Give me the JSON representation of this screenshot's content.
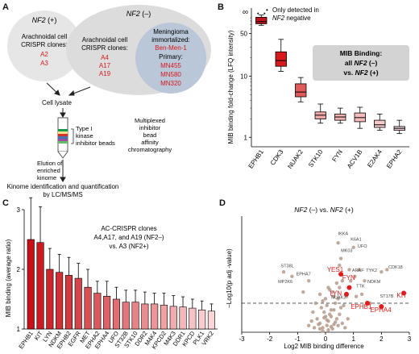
{
  "panelA": {
    "label": "A",
    "nf2pos_title_pre": "NF2",
    "nf2pos_title_post": " (+)",
    "nf2neg_title_pre": "NF2",
    "nf2neg_title_post": " (–)",
    "arach_left_1": "Arachnoidal cell",
    "arach_left_2": "CRISPR clones:",
    "left_clones": [
      "A2",
      "A3"
    ],
    "arach_right_1": "Arachnoidal cell",
    "arach_right_2": "CRISPR clones:",
    "right_clones": [
      "A4",
      "A17",
      "A19"
    ],
    "mening_1": "Meningioma",
    "mening_2": "immortalized:",
    "mening_line": "Ben-Men-1",
    "primary_label": "Primary:",
    "primary_lines": [
      "MN455",
      "MN580",
      "MN320"
    ],
    "cell_lysate": "Cell lysate",
    "type1_1": "Type I",
    "type1_2": "kinase",
    "type1_3": "inhibitor beads",
    "mib_1": "Multiplexed",
    "mib_2": "inhibitor",
    "mib_3": "bead",
    "mib_4": "affinity",
    "mib_5": "chromatography",
    "elution_1": "Elution of",
    "elution_2": "enriched",
    "elution_3": "kinome",
    "kinome_1": "Kinome identification and quantification",
    "kinome_2": "by LC/MS/MS",
    "colors": {
      "red": "#d7191c",
      "bubble_pos": "#e6e6e6",
      "bubble_neg": "#dcdcdc",
      "inner": "#b9c7d8"
    }
  },
  "panelB": {
    "label": "B",
    "infinity": "∞",
    "legend_1": "Only detected in",
    "legend_2_pre": "NF2",
    "legend_2_post": " negative",
    "box_title": "MIB Binding:",
    "box_line2_pre": "all ",
    "box_line2_nf2": "NF2",
    "box_line2_post": " (–)",
    "box_line3_pre": "vs. ",
    "box_line3_nf2": "NF2",
    "box_line3_post": " (+)"
  },
  "panelC": {
    "label": "C",
    "note_1": "AC-CRISPR clones",
    "note_2": "A4,A17, and A19 (NF2–)",
    "note_3": "vs. A3 (NF2+)"
  },
  "panelD": {
    "label": "D",
    "title_pre": "NF2",
    "title_mid": " (–) vs. ",
    "title_nf2": "NF2",
    "title_post": " (+)"
  },
  "chart_data": [
    {
      "panel": "B",
      "type": "box",
      "ylabel": "MIB binding fold-change (LFQ intensity)",
      "yscale": "log",
      "yticks": [
        1,
        10,
        50
      ],
      "ylim": [
        0.7,
        130
      ],
      "categories": [
        "EPHB1",
        "CDK3",
        "NUAK2",
        "STK10",
        "FYN",
        "ACV1B",
        "E2AK4",
        "EPHA2"
      ],
      "boxes": [
        {
          "min": 68,
          "q1": 72,
          "median": 78,
          "q3": 92,
          "max": 100
        },
        {
          "min": 12,
          "q1": 14.5,
          "median": 18,
          "q3": 25,
          "max": 40
        },
        {
          "min": 3.8,
          "q1": 4.6,
          "median": 5.5,
          "q3": 7.5,
          "max": 9.5
        },
        {
          "min": 1.7,
          "q1": 2.0,
          "median": 2.3,
          "q3": 2.6,
          "max": 3.5
        },
        {
          "min": 1.7,
          "q1": 1.9,
          "median": 2.15,
          "q3": 2.4,
          "max": 3.0
        },
        {
          "min": 1.4,
          "q1": 1.8,
          "median": 2.1,
          "q3": 2.5,
          "max": 3.1
        },
        {
          "min": 1.3,
          "q1": 1.45,
          "median": 1.6,
          "q3": 1.9,
          "max": 2.4
        },
        {
          "min": 1.15,
          "q1": 1.3,
          "median": 1.4,
          "q3": 1.5,
          "max": 1.9
        }
      ]
    },
    {
      "panel": "C",
      "type": "bar",
      "ylabel": "MIB binding (average ratio)",
      "ylim": [
        1,
        3
      ],
      "yticks": [
        1,
        2,
        3
      ],
      "categories": [
        "EPHB1",
        "KIT",
        "LYN",
        "NDKM",
        "EPHB2",
        "EGFR",
        "MET",
        "EPHA2",
        "EPHA4",
        "UFO",
        "ST32B",
        "STK10",
        "DDR2",
        "M4K4",
        "KPCD2",
        "M4K3",
        "DDR1",
        "KPCD",
        "PLK1",
        "VRK2"
      ],
      "values": [
        2.5,
        2.45,
        2.0,
        1.95,
        1.9,
        1.85,
        1.7,
        1.6,
        1.55,
        1.5,
        1.45,
        1.45,
        1.42,
        1.42,
        1.4,
        1.38,
        1.37,
        1.35,
        1.32,
        1.3
      ],
      "errors": [
        0.7,
        0.6,
        0.35,
        0.3,
        0.3,
        0.25,
        0.3,
        0.2,
        0.25,
        0.2,
        0.2,
        0.2,
        0.2,
        0.18,
        0.2,
        0.18,
        0.17,
        0.15,
        0.15,
        0.12
      ]
    },
    {
      "panel": "D",
      "type": "scatter",
      "xlabel": "Log2 MIB binding difference",
      "ylabel": "–Log10(p adj -value)",
      "xlim": [
        -3,
        3
      ],
      "xticks": [
        -3,
        -2,
        -1,
        0,
        1,
        2,
        3
      ],
      "ylim": [
        0,
        5.2
      ],
      "threshold": 1.3,
      "points_gray": [
        [
          -0.1,
          0.2
        ],
        [
          0.05,
          0.3
        ],
        [
          -0.2,
          0.4
        ],
        [
          0.1,
          0.5
        ],
        [
          0.2,
          0.25
        ],
        [
          -0.3,
          0.6
        ],
        [
          0,
          0.7
        ],
        [
          0.15,
          0.8
        ],
        [
          -0.05,
          0.9
        ],
        [
          0.3,
          1.0
        ],
        [
          -0.15,
          1.1
        ],
        [
          0.25,
          0.15
        ],
        [
          0.05,
          1.2
        ],
        [
          -0.25,
          0.35
        ],
        [
          0.35,
          0.45
        ],
        [
          0.4,
          0.6
        ],
        [
          -0.4,
          0.2
        ],
        [
          0.1,
          0.1
        ],
        [
          -0.1,
          0.05
        ],
        [
          0.2,
          1.0
        ],
        [
          0,
          1.5
        ],
        [
          0.3,
          1.6
        ],
        [
          -0.2,
          1.7
        ],
        [
          0.45,
          0.3
        ],
        [
          -0.5,
          0.5
        ],
        [
          0.5,
          0.8
        ],
        [
          0.55,
          1.1
        ],
        [
          -0.45,
          0.9
        ],
        [
          0.6,
          0.4
        ],
        [
          0.7,
          0.2
        ],
        [
          -0.6,
          0.3
        ],
        [
          0.15,
          1.9
        ],
        [
          -0.1,
          1.4
        ],
        [
          0.35,
          1.3
        ],
        [
          0.1,
          2.0
        ],
        [
          0.25,
          1.8
        ],
        [
          0.45,
          1.5
        ],
        [
          0.65,
          1.2
        ],
        [
          0.8,
          0.6
        ],
        [
          0.05,
          0.55
        ],
        [
          -0.35,
          1.3
        ],
        [
          -0.05,
          0.65
        ],
        [
          0.2,
          0.7
        ],
        [
          0.3,
          0.35
        ],
        [
          -0.2,
          0.15
        ],
        [
          0.4,
          2.2
        ],
        [
          0.6,
          2.3
        ],
        [
          0.5,
          2.0
        ],
        [
          0.9,
          2.3
        ],
        [
          1.05,
          2.5
        ],
        [
          1.2,
          2.8
        ],
        [
          1.4,
          2.3
        ],
        [
          1.3,
          1.7
        ],
        [
          0.75,
          1.6
        ],
        [
          1.1,
          1.6
        ],
        [
          1.6,
          1.3
        ],
        [
          0.5,
          3.0
        ],
        [
          0.55,
          3.3
        ],
        [
          0.45,
          4.0
        ],
        [
          1.0,
          3.8
        ],
        [
          -0.6,
          2.3
        ],
        [
          -1.5,
          2.7
        ],
        [
          -1.2,
          2.5
        ],
        [
          -0.8,
          1.8
        ],
        [
          0.85,
          2.8
        ],
        [
          2.0,
          2.7
        ],
        [
          2.2,
          2.8
        ]
      ],
      "points_red": [
        [
          0.55,
          2.6
        ],
        [
          0.85,
          2.0
        ],
        [
          0.75,
          1.7
        ],
        [
          1.5,
          1.3
        ],
        [
          2.0,
          1.15
        ],
        [
          2.8,
          1.75
        ]
      ],
      "labels_gray": [
        "IKKA",
        "K6A1",
        "MK03",
        "UFO",
        "ST38L",
        "EPHA7",
        "MP2K6",
        "ARAF",
        "TYK2",
        "NDKM",
        "CDK18",
        "TTK",
        "ST17B",
        "NUAK2"
      ],
      "labels_red": [
        "YES1",
        "FYN",
        "LYN",
        "EPHB1",
        "EPHA4",
        "KIT"
      ]
    }
  ]
}
